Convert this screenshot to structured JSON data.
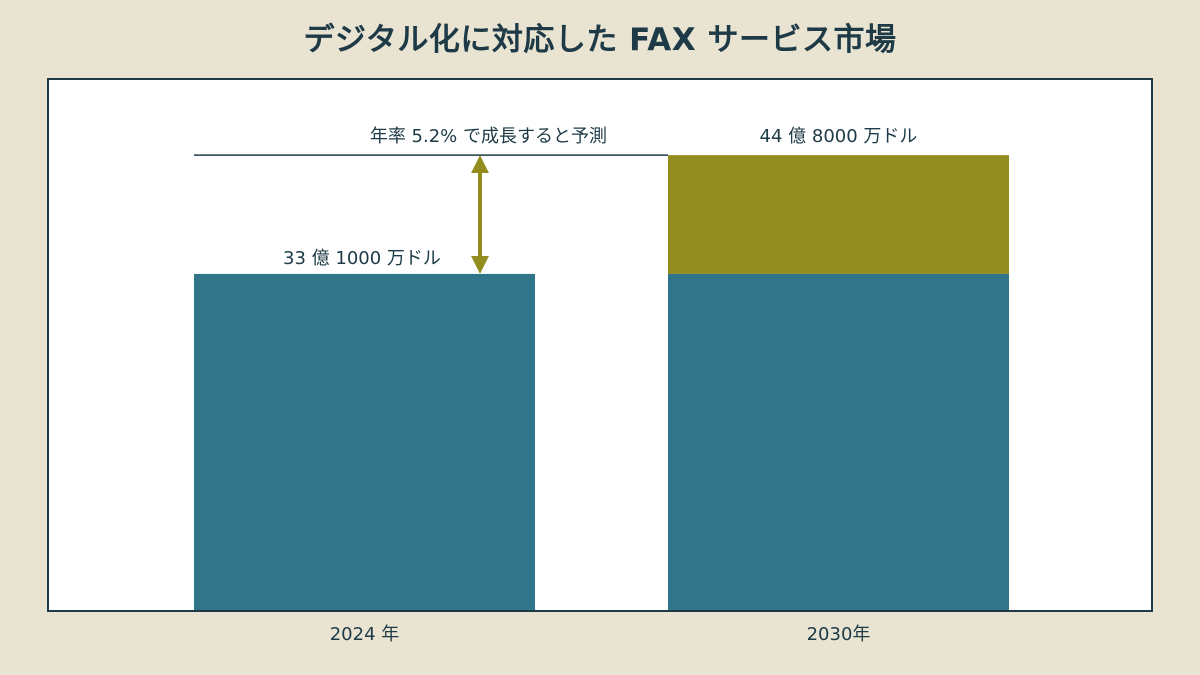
{
  "chart_data": {
    "type": "bar",
    "title": "デジタル化に対応した FAX サービス市場",
    "categories": [
      "2024 年",
      "2030年"
    ],
    "series": [
      {
        "values": [
          33.1,
          33.1
        ],
        "color": "#30758a"
      },
      {
        "values": [
          0,
          11.7
        ],
        "color": "#938c1e"
      }
    ],
    "totals": [
      44.8
    ],
    "data_labels": [
      "33 億 1000 万ドル",
      "44 億 8000 万ドル"
    ],
    "annotation": "年率 5.2% で成長すると予測",
    "annotation_color": "#938c1e",
    "ylim": [
      0,
      52.2
    ],
    "grid": false,
    "xlabel": "",
    "ylabel": ""
  }
}
